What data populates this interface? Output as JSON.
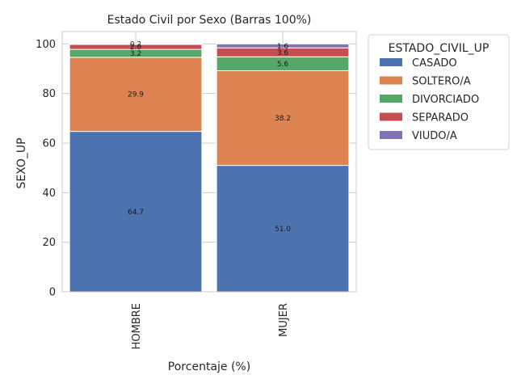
{
  "chart_data": {
    "type": "bar",
    "stacked": true,
    "title": "Estado Civil por Sexo (Barras 100%)",
    "xlabel": "Porcentaje (%)",
    "ylabel": "SEXO_UP",
    "categories": [
      "HOMBRE",
      "MUJER"
    ],
    "ylim": [
      0,
      105
    ],
    "yticks": [
      0,
      20,
      40,
      60,
      80,
      100
    ],
    "grid": true,
    "legend": {
      "title": "ESTADO_CIVIL_UP",
      "placement": "outside-right-top"
    },
    "series": [
      {
        "name": "CASADO",
        "color": "#4c72b0",
        "values": [
          64.7,
          51.0
        ]
      },
      {
        "name": "SOLTERO/A",
        "color": "#dd8452",
        "values": [
          29.9,
          38.2
        ]
      },
      {
        "name": "DIVORCIADO",
        "color": "#55a868",
        "values": [
          3.2,
          5.6
        ]
      },
      {
        "name": "SEPARADO",
        "color": "#c44e52",
        "values": [
          2.0,
          3.6
        ]
      },
      {
        "name": "VIUDO/A",
        "color": "#8172b3",
        "values": [
          0.2,
          1.6
        ]
      }
    ],
    "data_labels": [
      [
        "64.7",
        "51.0"
      ],
      [
        "29.9",
        "38.2"
      ],
      [
        "3.2",
        "5.6"
      ],
      [
        "2.0",
        "3.6"
      ],
      [
        "0.2",
        "1.6"
      ]
    ]
  }
}
